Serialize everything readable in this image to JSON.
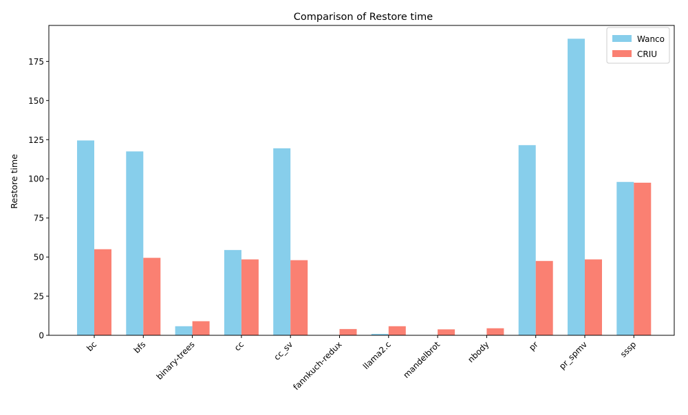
{
  "chart_data": {
    "type": "bar",
    "title": "Comparison of Restore time",
    "xlabel": "",
    "ylabel": "Restore time",
    "categories": [
      "bc",
      "bfs",
      "binary-trees",
      "cc",
      "cc_sv",
      "fannkuch-redux",
      "llama2.c",
      "mandelbrot",
      "nbody",
      "pr",
      "pr_spmv",
      "sssp"
    ],
    "series": [
      {
        "name": "Wanco",
        "color": "#87CEEB",
        "values": [
          124.5,
          117.5,
          5.8,
          54.5,
          119.5,
          0,
          0.9,
          0,
          0,
          121.5,
          189.5,
          98.0
        ]
      },
      {
        "name": "CRIU",
        "color": "#FA8072",
        "values": [
          55.0,
          49.5,
          9.0,
          48.5,
          48.0,
          4.0,
          5.8,
          3.8,
          4.5,
          47.5,
          48.5,
          97.5
        ]
      }
    ],
    "ylim": [
      0,
      198
    ],
    "yticks": [
      0,
      25,
      50,
      75,
      100,
      125,
      150,
      175
    ],
    "grid": false,
    "legend_position": "top-right"
  }
}
